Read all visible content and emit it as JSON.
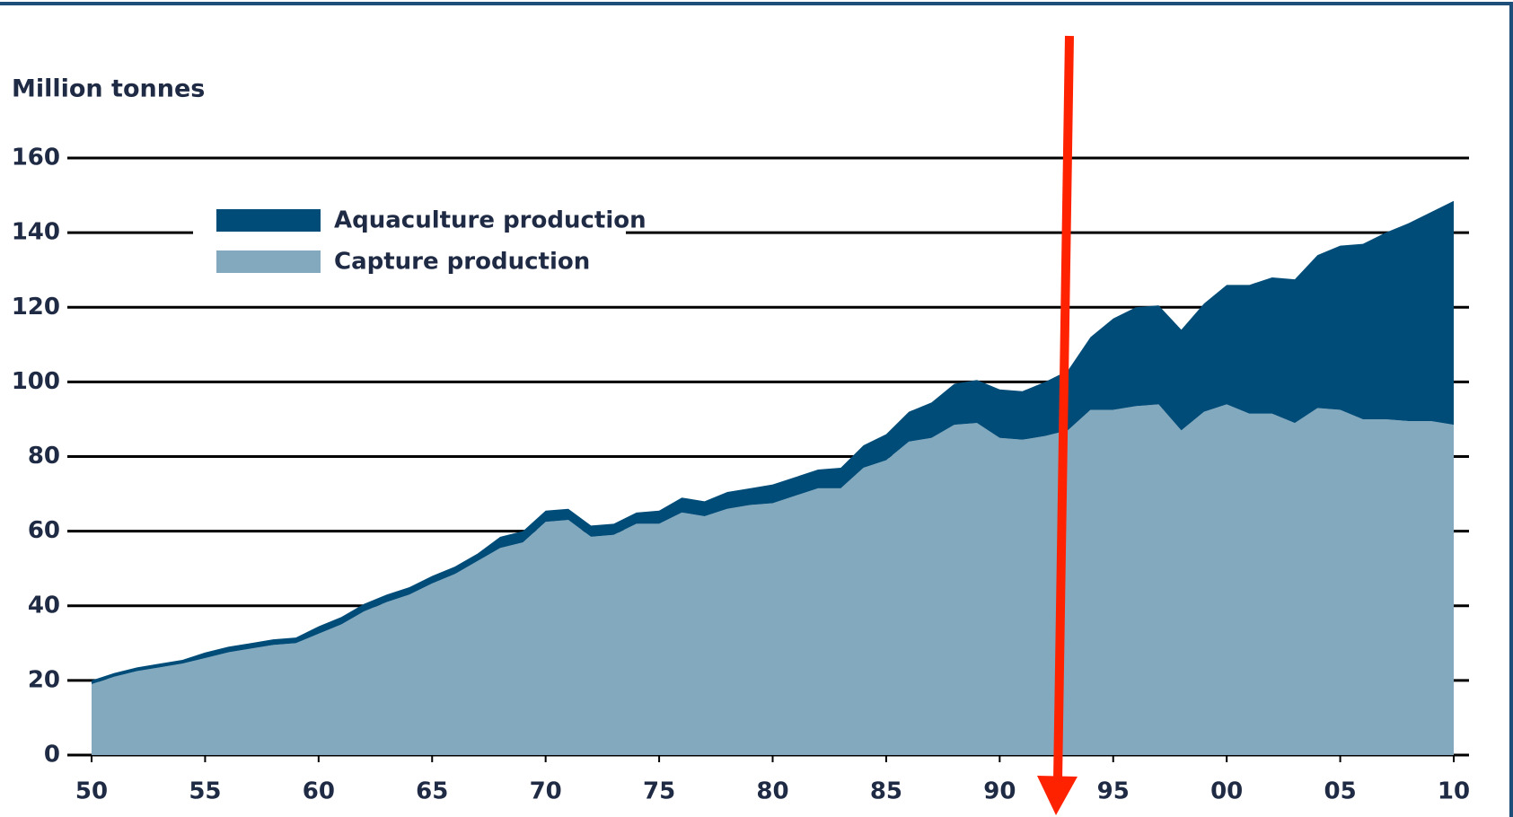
{
  "chart_data": {
    "type": "stacked_area",
    "y_label": "Million tonnes",
    "x": [
      1950,
      1951,
      1952,
      1953,
      1954,
      1955,
      1956,
      1957,
      1958,
      1959,
      1960,
      1961,
      1962,
      1963,
      1964,
      1965,
      1966,
      1967,
      1968,
      1969,
      1970,
      1971,
      1972,
      1973,
      1974,
      1975,
      1976,
      1977,
      1978,
      1979,
      1980,
      1981,
      1982,
      1983,
      1984,
      1985,
      1986,
      1987,
      1988,
      1989,
      1990,
      1991,
      1992,
      1993,
      1994,
      1995,
      1996,
      1997,
      1998,
      1999,
      2000,
      2001,
      2002,
      2003,
      2004,
      2005,
      2006,
      2007,
      2008,
      2009,
      2010
    ],
    "series": [
      {
        "name": "Capture production",
        "color": "#83a9bf",
        "values": [
          19,
          21,
          22.5,
          23.5,
          24.5,
          26,
          27.5,
          28.5,
          29.5,
          30,
          32.5,
          35,
          38.5,
          41,
          43,
          46,
          48.5,
          52,
          55.5,
          57,
          62.5,
          63,
          58.5,
          59,
          62,
          62,
          65,
          64,
          66,
          67,
          67.5,
          69.5,
          71.5,
          71.5,
          77,
          79,
          84,
          85,
          88.5,
          89,
          85,
          84.5,
          85.5,
          87,
          92.5,
          92.5,
          93.5,
          94,
          87,
          92,
          94,
          91.5,
          91.5,
          89,
          93,
          92.5,
          90,
          90,
          89.5,
          89.5,
          88.5
        ]
      },
      {
        "name": "Aquaculture production",
        "color": "#004c78",
        "values": [
          1,
          1,
          1,
          1,
          1,
          1.5,
          1.5,
          1.5,
          1.5,
          1.5,
          2,
          2,
          2,
          2,
          2,
          2,
          2,
          2,
          3,
          3,
          3,
          3,
          3,
          3,
          3,
          3.5,
          4,
          4,
          4.5,
          4.5,
          5,
          5,
          5,
          5.5,
          6,
          7,
          8,
          9.5,
          11,
          11.5,
          13,
          13,
          14.5,
          16,
          19.5,
          24.5,
          26.5,
          26.5,
          27,
          29,
          32,
          34.5,
          36.5,
          38.5,
          41,
          44,
          47,
          50,
          53,
          56,
          60
        ]
      }
    ],
    "xlim": [
      1950,
      2010
    ],
    "xticks": [
      {
        "value": 1950,
        "label": "50"
      },
      {
        "value": 1955,
        "label": "55"
      },
      {
        "value": 1960,
        "label": "60"
      },
      {
        "value": 1965,
        "label": "65"
      },
      {
        "value": 1970,
        "label": "70"
      },
      {
        "value": 1975,
        "label": "75"
      },
      {
        "value": 1980,
        "label": "80"
      },
      {
        "value": 1985,
        "label": "85"
      },
      {
        "value": 1990,
        "label": "90"
      },
      {
        "value": 1995,
        "label": "95"
      },
      {
        "value": 2000,
        "label": "00"
      },
      {
        "value": 2005,
        "label": "05"
      },
      {
        "value": 2010,
        "label": "10"
      }
    ],
    "ylim": [
      0,
      160
    ],
    "yticks": [
      0,
      20,
      40,
      60,
      80,
      100,
      120,
      140,
      160
    ],
    "grid": true,
    "legend": "upper-left"
  }
}
